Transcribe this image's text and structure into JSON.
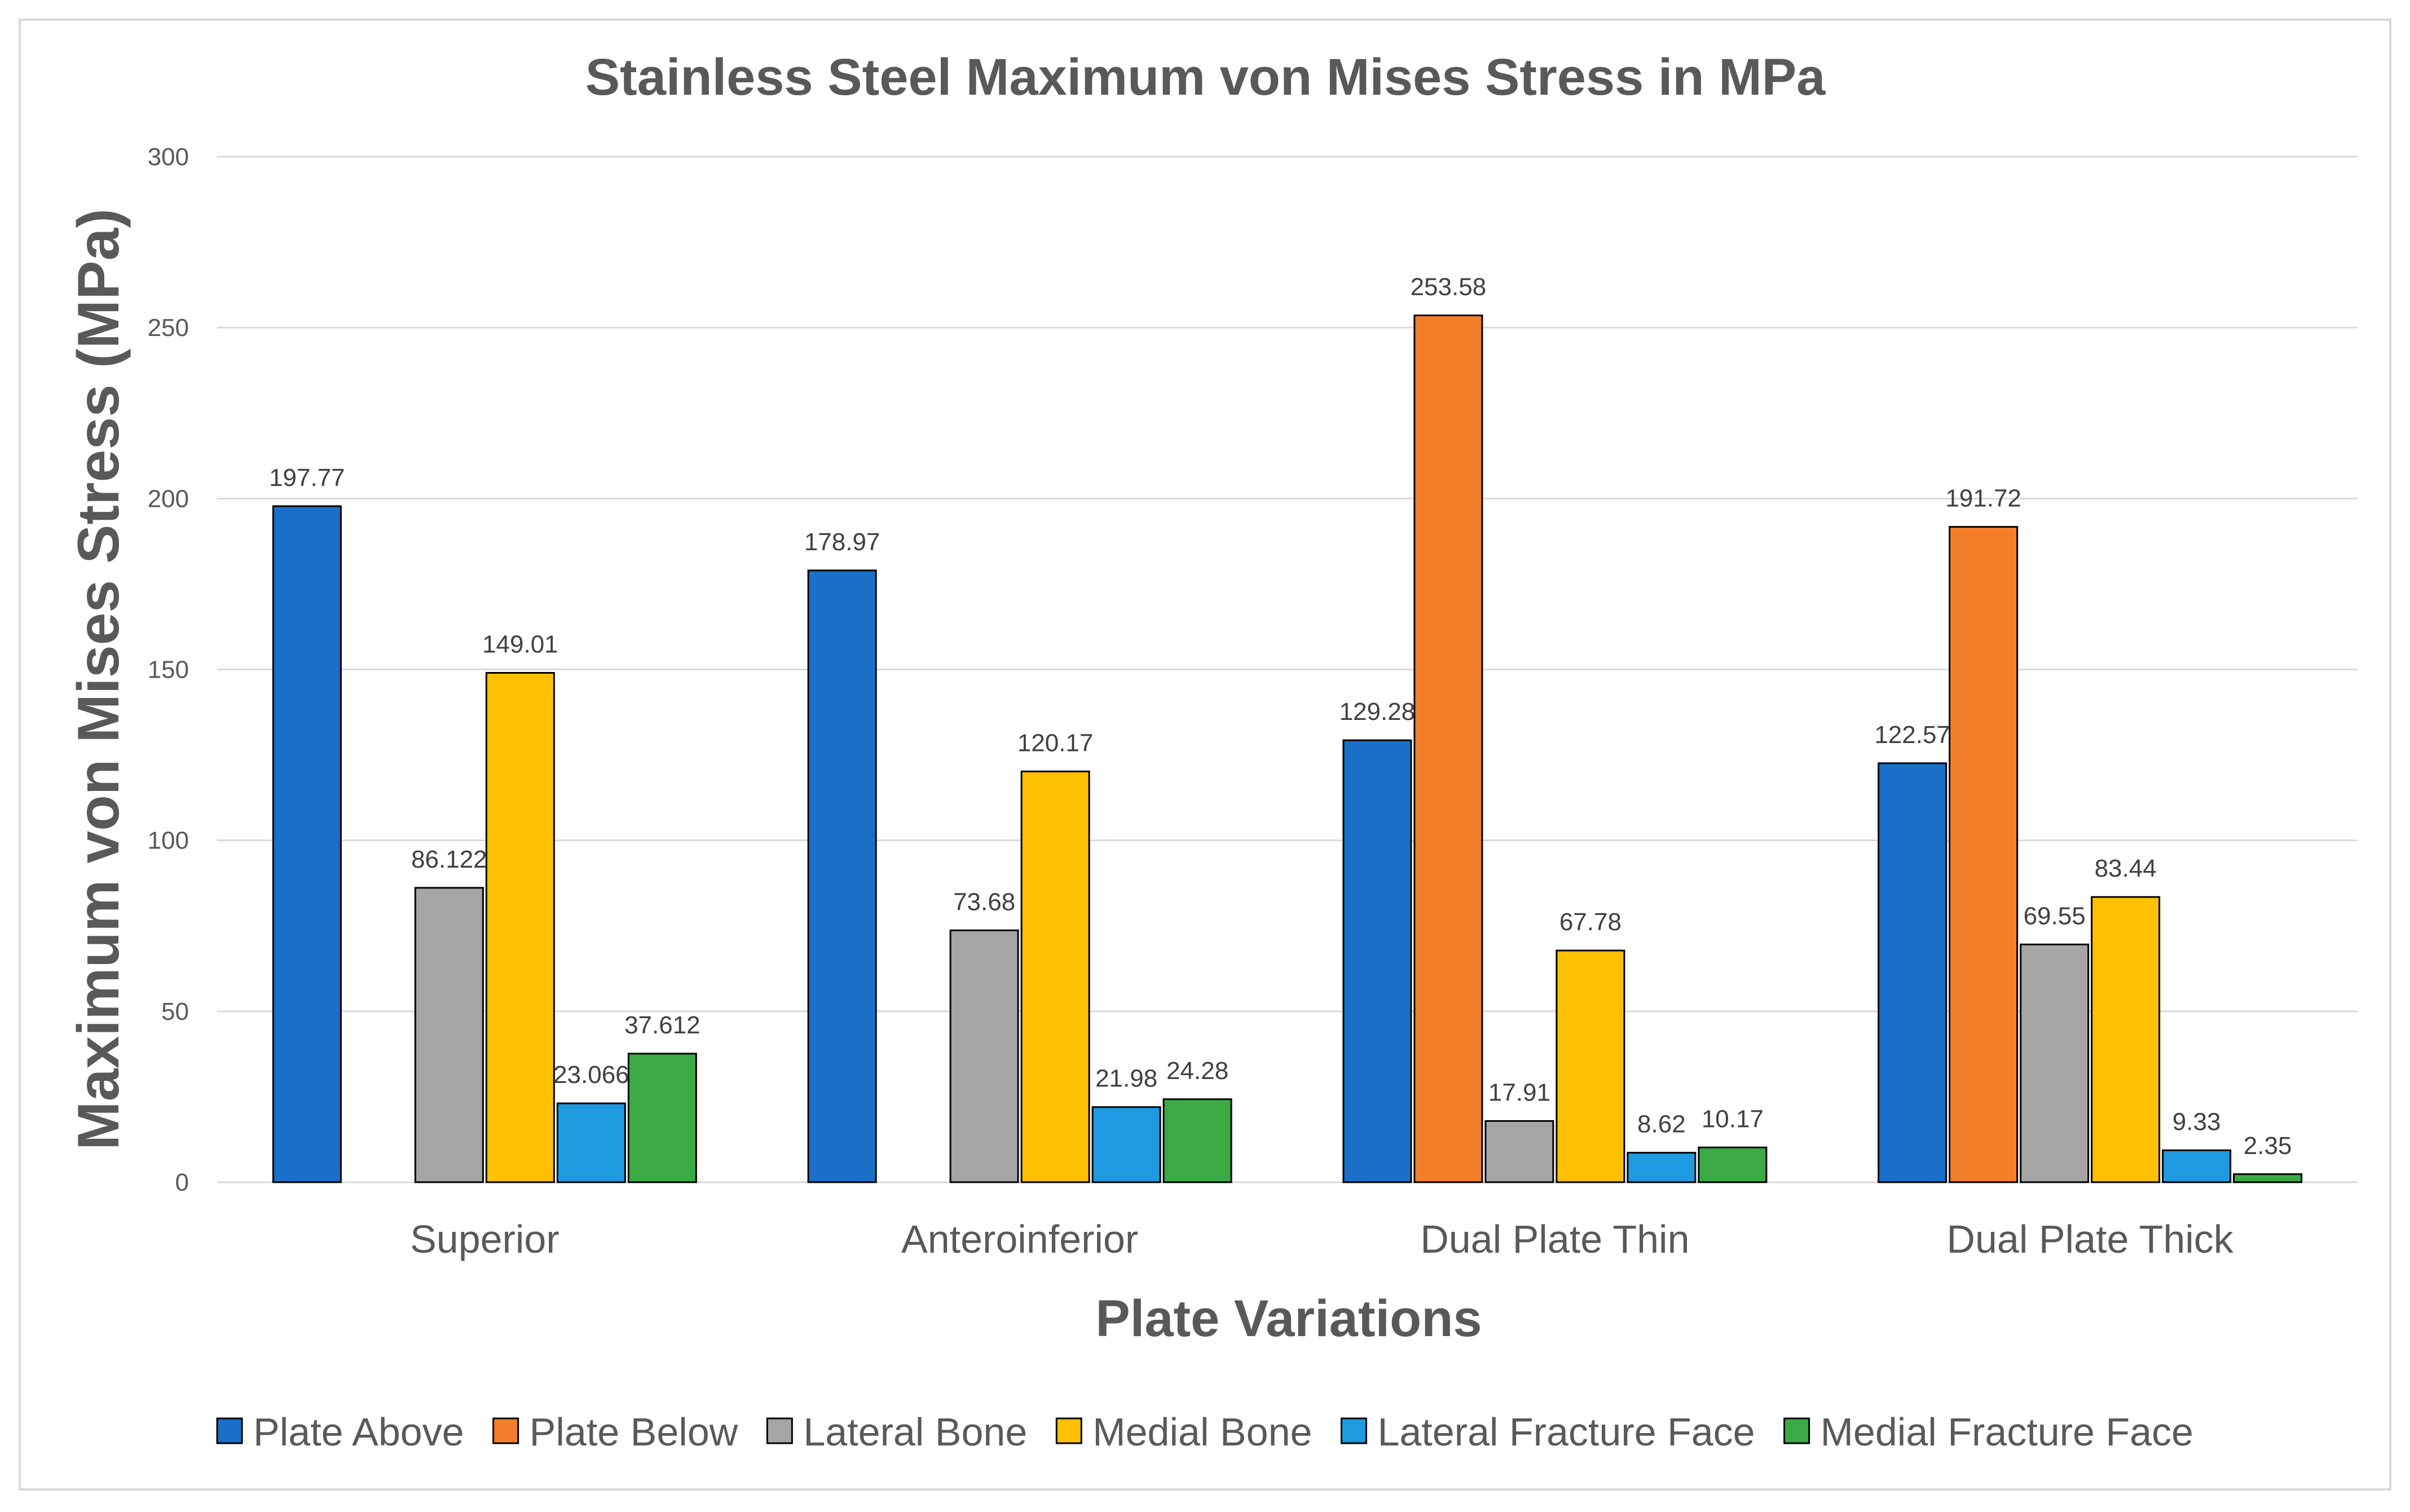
{
  "chart_data": {
    "type": "bar",
    "title": "Stainless Steel Maximum von Mises Stress in MPa",
    "xlabel": "Plate Variations",
    "ylabel": "Maximum von Mises Stress (MPa)",
    "ylim": [
      0,
      300
    ],
    "yticks": [
      0,
      50,
      100,
      150,
      200,
      250,
      300
    ],
    "grid": true,
    "legend_position": "bottom",
    "categories": [
      "Superior",
      "Anteroinferior",
      "Dual Plate Thin",
      "Dual Plate Thick"
    ],
    "series": [
      {
        "name": "Plate Above",
        "color": "#1a6fc9",
        "values": [
          197.77,
          178.97,
          129.28,
          122.57
        ],
        "labels": [
          "197.77",
          "178.97",
          "129.28",
          "122.57"
        ]
      },
      {
        "name": "Plate Below",
        "color": "#f47f2a",
        "values": [
          null,
          null,
          253.58,
          191.72
        ],
        "labels": [
          "",
          "",
          "253.58",
          "191.72"
        ]
      },
      {
        "name": "Lateral Bone",
        "color": "#a5a5a5",
        "values": [
          86.122,
          73.68,
          17.91,
          69.55
        ],
        "labels": [
          "86.122",
          "73.68",
          "17.91",
          "69.55"
        ]
      },
      {
        "name": "Medial Bone",
        "color": "#fec000",
        "values": [
          149.01,
          120.17,
          67.78,
          83.44
        ],
        "labels": [
          "149.01",
          "120.17",
          "67.78",
          "83.44"
        ]
      },
      {
        "name": "Lateral Fracture Face",
        "color": "#1e9ae0",
        "values": [
          23.066,
          21.98,
          8.62,
          9.33
        ],
        "labels": [
          "23.066",
          "21.98",
          "8.62",
          "9.33"
        ]
      },
      {
        "name": "Medial Fracture Face",
        "color": "#3aaa45",
        "values": [
          37.612,
          24.28,
          10.17,
          2.35
        ],
        "labels": [
          "37.612",
          "24.28",
          "10.17",
          "2.35"
        ]
      }
    ]
  }
}
